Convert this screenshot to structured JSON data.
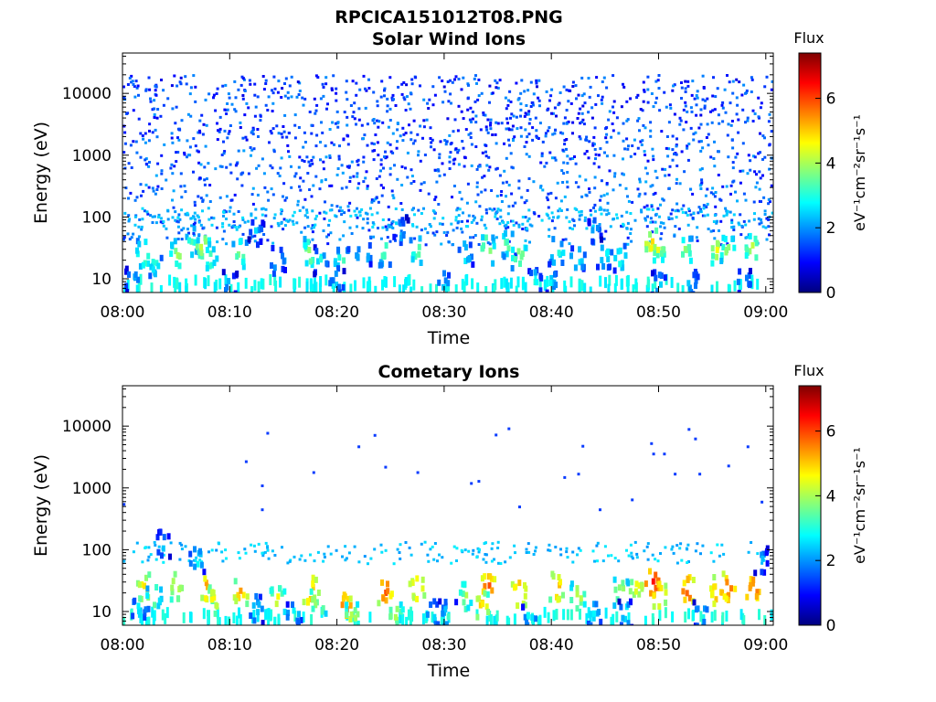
{
  "figure": {
    "title": "RPCICA151012T08.PNG"
  },
  "colorbar": {
    "title": "Flux",
    "label": "eV⁻¹cm⁻²sr⁻¹s⁻¹",
    "range": [
      0,
      7.4
    ],
    "ticks": [
      "0",
      "2",
      "4",
      "6"
    ],
    "colormap": "jet"
  },
  "chart_data": [
    {
      "type": "heatmap",
      "title": "Solar Wind Ions",
      "xlabel": "Time",
      "ylabel": "Energy (eV)",
      "x_ticks": [
        "08:00",
        "08:10",
        "08:20",
        "08:30",
        "08:40",
        "08:50",
        "09:00"
      ],
      "y_ticks": [
        "10",
        "100",
        "1000",
        "10000"
      ],
      "y_scale": "log",
      "y_range": [
        6,
        45000
      ],
      "bursts": [
        {
          "t": 2.0,
          "e": 25,
          "v": 4.0
        },
        {
          "t": 3.0,
          "e": 18,
          "v": 3.2
        },
        {
          "t": 5.2,
          "e": 25,
          "v": 4.2
        },
        {
          "t": 6.5,
          "e": 40,
          "v": 3.5
        },
        {
          "t": 7.5,
          "e": 35,
          "v": 4.5
        },
        {
          "t": 8.2,
          "e": 22,
          "v": 3.8
        },
        {
          "t": 11.0,
          "e": 25,
          "v": 4.0
        },
        {
          "t": 14.5,
          "e": 20,
          "v": 3.0
        },
        {
          "t": 17.5,
          "e": 28,
          "v": 4.2
        },
        {
          "t": 18.5,
          "e": 20,
          "v": 3.0
        },
        {
          "t": 20.5,
          "e": 20,
          "v": 3.6
        },
        {
          "t": 24.5,
          "e": 28,
          "v": 3.8
        },
        {
          "t": 27.5,
          "e": 28,
          "v": 4.0
        },
        {
          "t": 32.0,
          "e": 25,
          "v": 3.2
        },
        {
          "t": 34.0,
          "e": 30,
          "v": 4.3
        },
        {
          "t": 36.0,
          "e": 38,
          "v": 3.8
        },
        {
          "t": 37.0,
          "e": 25,
          "v": 4.3
        },
        {
          "t": 40.5,
          "e": 28,
          "v": 3.6
        },
        {
          "t": 42.5,
          "e": 22,
          "v": 3.2
        },
        {
          "t": 49.5,
          "e": 38,
          "v": 5.2
        },
        {
          "t": 50.0,
          "e": 30,
          "v": 4.5
        },
        {
          "t": 52.5,
          "e": 28,
          "v": 4.2
        },
        {
          "t": 55.5,
          "e": 28,
          "v": 4.6
        },
        {
          "t": 56.5,
          "e": 28,
          "v": 4.2
        },
        {
          "t": 58.8,
          "e": 30,
          "v": 4.4
        },
        {
          "t": 46.5,
          "e": 22,
          "v": 3.4
        },
        {
          "t": 1.0,
          "e": 9,
          "v": 2.8
        },
        {
          "t": 10.0,
          "e": 8,
          "v": 2.7
        },
        {
          "t": 20.0,
          "e": 9,
          "v": 2.8
        },
        {
          "t": 30.0,
          "e": 8,
          "v": 2.7
        },
        {
          "t": 40.0,
          "e": 9,
          "v": 2.8
        },
        {
          "t": 50.0,
          "e": 8,
          "v": 2.8
        },
        {
          "t": 58.0,
          "e": 9,
          "v": 2.8
        },
        {
          "t": 26.0,
          "e": 60,
          "v": 2.6
        },
        {
          "t": 44.0,
          "e": 60,
          "v": 2.6
        },
        {
          "t": 12.5,
          "e": 60,
          "v": 2.6
        },
        {
          "t": 22.5,
          "e": 25,
          "v": 3.2
        },
        {
          "t": 45.0,
          "e": 25,
          "v": 3.2
        },
        {
          "t": 53.0,
          "e": 9,
          "v": 2.8
        },
        {
          "t": 38.5,
          "e": 9,
          "v": 2.8
        }
      ]
    },
    {
      "type": "heatmap",
      "title": "Cometary Ions",
      "xlabel": "Time",
      "ylabel": "Energy (eV)",
      "x_ticks": [
        "08:00",
        "08:10",
        "08:20",
        "08:30",
        "08:40",
        "08:50",
        "09:00"
      ],
      "y_ticks": [
        "10",
        "100",
        "1000",
        "10000"
      ],
      "y_scale": "log",
      "y_range": [
        6,
        45000
      ],
      "bursts": [
        {
          "t": 2.0,
          "e": 25,
          "v": 5.2
        },
        {
          "t": 3.0,
          "e": 18,
          "v": 4.0
        },
        {
          "t": 5.0,
          "e": 25,
          "v": 4.8
        },
        {
          "t": 7.8,
          "e": 25,
          "v": 5.6
        },
        {
          "t": 8.5,
          "e": 15,
          "v": 5.0
        },
        {
          "t": 11.0,
          "e": 20,
          "v": 5.4
        },
        {
          "t": 14.5,
          "e": 15,
          "v": 4.8
        },
        {
          "t": 17.5,
          "e": 22,
          "v": 5.8
        },
        {
          "t": 18.3,
          "e": 15,
          "v": 4.8
        },
        {
          "t": 20.8,
          "e": 12,
          "v": 6.0
        },
        {
          "t": 24.5,
          "e": 22,
          "v": 6.2
        },
        {
          "t": 27.5,
          "e": 25,
          "v": 5.6
        },
        {
          "t": 32.0,
          "e": 18,
          "v": 4.2
        },
        {
          "t": 34.2,
          "e": 25,
          "v": 6.2
        },
        {
          "t": 33.5,
          "e": 12,
          "v": 5.2
        },
        {
          "t": 37.0,
          "e": 20,
          "v": 5.8
        },
        {
          "t": 40.5,
          "e": 25,
          "v": 5.6
        },
        {
          "t": 42.5,
          "e": 18,
          "v": 4.6
        },
        {
          "t": 46.5,
          "e": 20,
          "v": 4.6
        },
        {
          "t": 48.0,
          "e": 25,
          "v": 5.0
        },
        {
          "t": 49.5,
          "e": 30,
          "v": 6.6
        },
        {
          "t": 50.0,
          "e": 20,
          "v": 5.8
        },
        {
          "t": 52.8,
          "e": 22,
          "v": 6.2
        },
        {
          "t": 55.5,
          "e": 22,
          "v": 5.8
        },
        {
          "t": 56.5,
          "e": 25,
          "v": 6.0
        },
        {
          "t": 58.8,
          "e": 22,
          "v": 6.2
        },
        {
          "t": 30.5,
          "e": 9,
          "v": 3.4
        },
        {
          "t": 21.5,
          "e": 9,
          "v": 4.4
        },
        {
          "t": 1.5,
          "e": 11,
          "v": 3.0
        },
        {
          "t": 7.0,
          "e": 70,
          "v": 3.2
        },
        {
          "t": 25.5,
          "e": 9,
          "v": 4.4
        },
        {
          "t": 47.0,
          "e": 9,
          "v": 3.0
        },
        {
          "t": 29.0,
          "e": 9,
          "v": 3.0
        },
        {
          "t": 38.0,
          "e": 9,
          "v": 3.0
        },
        {
          "t": 44.0,
          "e": 9,
          "v": 3.0
        },
        {
          "t": 54.0,
          "e": 9,
          "v": 3.0
        },
        {
          "t": 12.5,
          "e": 11,
          "v": 3.0
        },
        {
          "t": 16.0,
          "e": 9,
          "v": 3.0
        },
        {
          "t": 3.8,
          "e": 120,
          "v": 2.6
        },
        {
          "t": 59.5,
          "e": 70,
          "v": 2.6
        }
      ],
      "sparse_points": [
        {
          "t": 0.1,
          "e": 550
        },
        {
          "t": 13.0,
          "e": 1100
        },
        {
          "t": 13.5,
          "e": 7800
        },
        {
          "t": 11.5,
          "e": 2700
        },
        {
          "t": 17.8,
          "e": 1800
        },
        {
          "t": 22.0,
          "e": 4700
        },
        {
          "t": 23.5,
          "e": 7200
        },
        {
          "t": 24.5,
          "e": 2200
        },
        {
          "t": 27.5,
          "e": 1800
        },
        {
          "t": 32.5,
          "e": 1200
        },
        {
          "t": 33.2,
          "e": 1300
        },
        {
          "t": 34.8,
          "e": 7300
        },
        {
          "t": 36.0,
          "e": 9200
        },
        {
          "t": 41.2,
          "e": 1500
        },
        {
          "t": 42.5,
          "e": 1700
        },
        {
          "t": 42.9,
          "e": 4800
        },
        {
          "t": 49.3,
          "e": 5300
        },
        {
          "t": 49.5,
          "e": 3600
        },
        {
          "t": 50.5,
          "e": 3600
        },
        {
          "t": 52.8,
          "e": 9000
        },
        {
          "t": 53.4,
          "e": 6300
        },
        {
          "t": 51.5,
          "e": 1700
        },
        {
          "t": 53.8,
          "e": 1700
        },
        {
          "t": 56.5,
          "e": 2300
        },
        {
          "t": 58.3,
          "e": 4700
        },
        {
          "t": 59.6,
          "e": 600
        },
        {
          "t": 47.5,
          "e": 650
        },
        {
          "t": 37.0,
          "e": 500
        },
        {
          "t": 44.5,
          "e": 450
        },
        {
          "t": 13.0,
          "e": 450
        }
      ]
    }
  ]
}
